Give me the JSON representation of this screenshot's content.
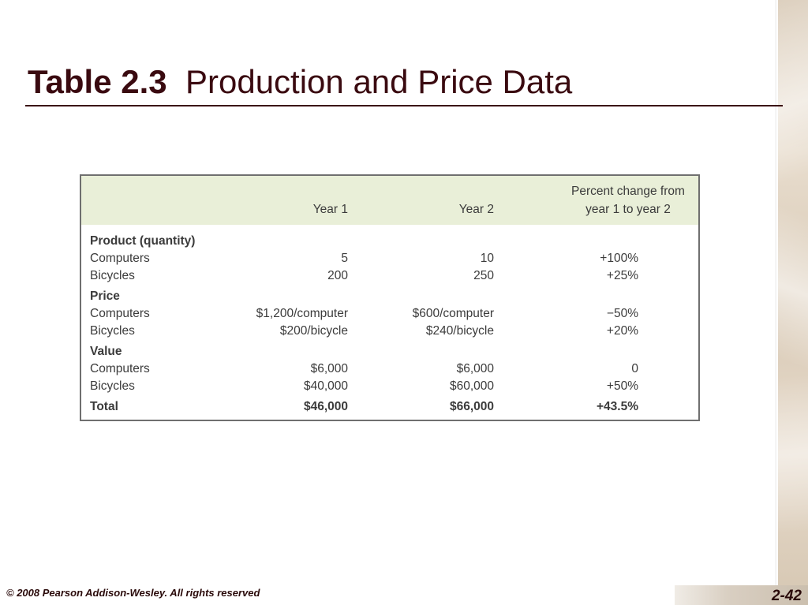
{
  "slide": {
    "title_number": "Table 2.3",
    "title_text": "Production and Price Data",
    "footer_copyright": "© 2008 Pearson Addison-Wesley. All rights reserved",
    "page_number": "2-42"
  },
  "table": {
    "headers": {
      "col1": "Year 1",
      "col2": "Year 2",
      "col3_line1": "Percent change from",
      "col3_line2": "year 1 to year 2"
    },
    "sections": [
      {
        "title": "Product (quantity)",
        "rows": [
          {
            "label": "Computers",
            "year1": "5",
            "year2": "10",
            "change": "+100%"
          },
          {
            "label": "Bicycles",
            "year1": "200",
            "year2": "250",
            "change": "+25%"
          }
        ]
      },
      {
        "title": "Price",
        "rows": [
          {
            "label": "Computers",
            "year1": "$1,200/computer",
            "year2": "$600/computer",
            "change": "−50%"
          },
          {
            "label": "Bicycles",
            "year1": "$200/bicycle",
            "year2": "$240/bicycle",
            "change": "+20%"
          }
        ]
      },
      {
        "title": "Value",
        "rows": [
          {
            "label": "Computers",
            "year1": "$6,000",
            "year2": "$6,000",
            "change": "0"
          },
          {
            "label": "Bicycles",
            "year1": "$40,000",
            "year2": "$60,000",
            "change": "+50%"
          }
        ]
      }
    ],
    "total": {
      "label": "Total",
      "year1": "$46,000",
      "year2": "$66,000",
      "change": "+43.5%"
    }
  }
}
